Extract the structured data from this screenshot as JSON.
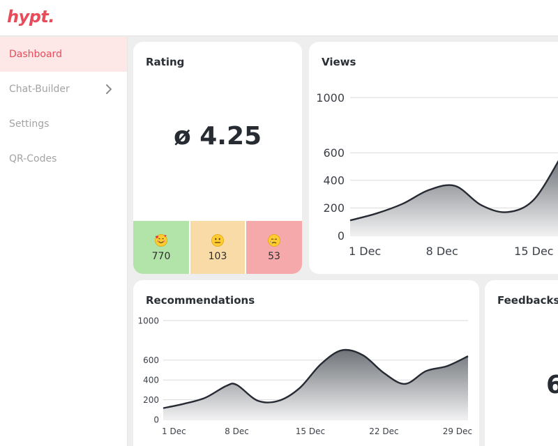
{
  "app": {
    "logo": "hypt."
  },
  "sidebar": {
    "items": [
      {
        "label": "Dashboard",
        "active": true
      },
      {
        "label": "Chat-Builder",
        "has_submenu": true
      },
      {
        "label": "Settings"
      },
      {
        "label": "QR-Codes"
      }
    ]
  },
  "rating": {
    "title": "Rating",
    "average": "ø 4.25",
    "counts": [
      {
        "icon": "smiling-face-with-hearts-icon",
        "value": "770",
        "color": "#b2e3a8"
      },
      {
        "icon": "neutral-face-icon",
        "value": "103",
        "color": "#f8dba6"
      },
      {
        "icon": "sad-crying-face-icon",
        "value": "53",
        "color": "#f6a9ab"
      }
    ]
  },
  "views": {
    "title": "Views",
    "chart_data": {
      "type": "area",
      "x": [
        1,
        3,
        5,
        7,
        9,
        11,
        13,
        15,
        17
      ],
      "values": [
        110,
        160,
        230,
        330,
        360,
        220,
        170,
        260,
        560
      ],
      "y_ticks": [
        0,
        200,
        400,
        600,
        1000
      ],
      "x_tick_labels": [
        "1 Dec",
        "8 Dec",
        "15 Dec"
      ],
      "x_tick_positions": [
        1,
        8,
        15
      ],
      "ylim": [
        0,
        1000
      ],
      "xlim": [
        1,
        17
      ]
    }
  },
  "recommendations": {
    "title": "Recommendations",
    "chart_data": {
      "type": "area",
      "x": [
        1,
        3,
        5,
        7,
        8,
        10,
        12,
        14,
        16,
        18,
        20,
        22,
        24,
        26,
        28,
        30
      ],
      "values": [
        115,
        160,
        220,
        340,
        350,
        190,
        190,
        320,
        560,
        700,
        650,
        470,
        360,
        490,
        540,
        640
      ],
      "y_ticks": [
        0,
        200,
        400,
        600,
        1000
      ],
      "x_tick_labels": [
        "1 Dec",
        "8 Dec",
        "15 Dec",
        "22 Dec",
        "29 Dec"
      ],
      "x_tick_positions": [
        1,
        8,
        15,
        22,
        29
      ],
      "ylim": [
        0,
        1000
      ],
      "xlim": [
        1,
        30
      ]
    }
  },
  "feedbacks": {
    "title": "Feedbacks",
    "value_partial": "6"
  }
}
